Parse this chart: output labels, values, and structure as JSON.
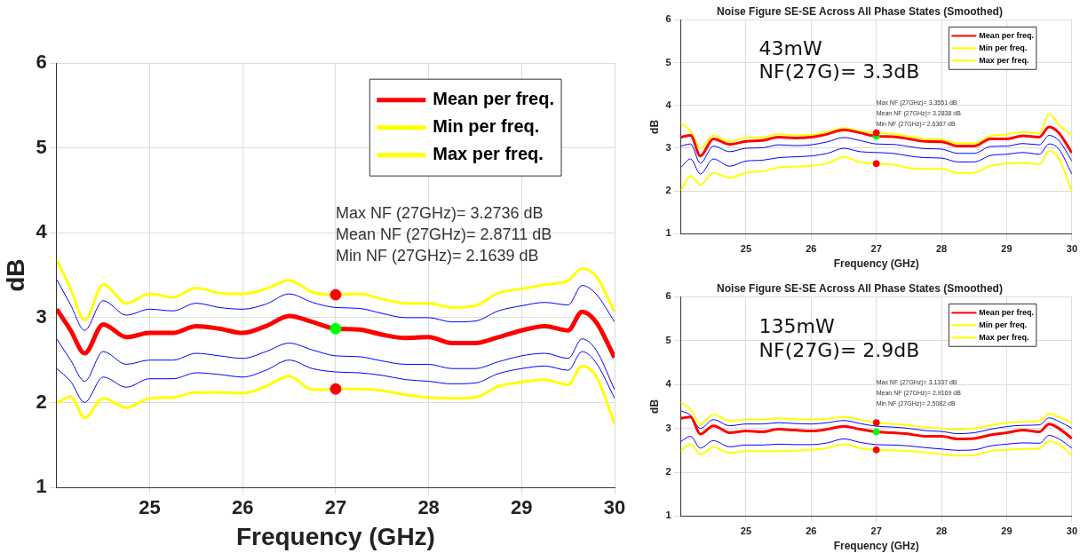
{
  "chart_data": [
    {
      "type": "line",
      "xlabel": "Frequency (GHz)",
      "ylabel": "dB",
      "xlim": [
        24,
        30
      ],
      "xticks": [
        25,
        26,
        27,
        28,
        29,
        30
      ],
      "ylim": [
        1,
        6
      ],
      "yticks": [
        1,
        2,
        3,
        4,
        5,
        6
      ],
      "grid": true,
      "legend": "top right",
      "x": [
        24,
        24.15,
        24.3,
        24.5,
        24.75,
        25,
        25.25,
        25.5,
        25.75,
        26,
        26.25,
        26.5,
        26.75,
        27,
        27.25,
        27.5,
        27.75,
        28,
        28.25,
        28.5,
        28.75,
        29,
        29.25,
        29.5,
        29.65,
        29.8,
        30
      ],
      "annotations": [
        "Max NF (27GHz)= 3.2736 dB",
        "Mean NF (27GHz)= 2.8711 dB",
        "Min NF (27GHz)= 2.1639 dB"
      ],
      "series": [
        {
          "name": "Mean per freq.",
          "color": "#ff0000",
          "values": [
            3.1,
            2.85,
            2.58,
            2.92,
            2.77,
            2.82,
            2.82,
            2.9,
            2.87,
            2.82,
            2.9,
            3.02,
            2.95,
            2.87,
            2.86,
            2.8,
            2.76,
            2.77,
            2.7,
            2.7,
            2.77,
            2.85,
            2.9,
            2.85,
            3.07,
            2.95,
            2.53
          ]
        },
        {
          "name": "Min per freq.",
          "color": "#ffff00",
          "values": [
            1.99,
            2.07,
            1.82,
            2.05,
            1.94,
            2.05,
            2.06,
            2.12,
            2.12,
            2.11,
            2.19,
            2.31,
            2.15,
            2.16,
            2.16,
            2.14,
            2.09,
            2.06,
            2.05,
            2.06,
            2.19,
            2.24,
            2.27,
            2.21,
            2.43,
            2.31,
            1.75
          ]
        },
        {
          "name": "Max per freq.",
          "color": "#ffff00",
          "values": [
            3.68,
            3.34,
            2.97,
            3.39,
            3.17,
            3.28,
            3.24,
            3.35,
            3.29,
            3.28,
            3.34,
            3.44,
            3.3,
            3.27,
            3.28,
            3.22,
            3.17,
            3.17,
            3.12,
            3.14,
            3.29,
            3.34,
            3.39,
            3.44,
            3.58,
            3.49,
            3.07
          ]
        },
        {
          "color": "#0000ff",
          "values": [
            3.45,
            3.15,
            2.85,
            3.2,
            3.03,
            3.1,
            3.08,
            3.17,
            3.12,
            3.1,
            3.16,
            3.28,
            3.18,
            3.12,
            3.11,
            3.05,
            3.0,
            3.0,
            2.95,
            2.96,
            3.08,
            3.14,
            3.18,
            3.15,
            3.38,
            3.28,
            2.95
          ]
        },
        {
          "color": "#0000ff",
          "values": [
            2.75,
            2.5,
            2.25,
            2.6,
            2.45,
            2.5,
            2.5,
            2.58,
            2.55,
            2.52,
            2.6,
            2.7,
            2.62,
            2.55,
            2.54,
            2.49,
            2.45,
            2.45,
            2.4,
            2.4,
            2.48,
            2.55,
            2.58,
            2.52,
            2.75,
            2.62,
            2.15
          ]
        },
        {
          "color": "#0000ff",
          "values": [
            2.4,
            2.25,
            2.0,
            2.3,
            2.18,
            2.28,
            2.28,
            2.35,
            2.33,
            2.3,
            2.38,
            2.5,
            2.4,
            2.36,
            2.35,
            2.32,
            2.27,
            2.25,
            2.22,
            2.23,
            2.34,
            2.4,
            2.43,
            2.38,
            2.6,
            2.47,
            2.05
          ]
        },
        {
          "type": "scatter",
          "marker": "circle",
          "values": [
            null,
            null,
            null,
            null,
            null,
            null,
            null,
            null,
            null,
            null,
            null,
            null,
            null,
            3.27,
            null,
            null,
            null,
            null,
            null,
            null,
            null,
            null,
            null,
            null,
            null,
            null,
            null
          ],
          "color": "#ff0000"
        },
        {
          "type": "scatter",
          "marker": "circle",
          "values": [
            null,
            null,
            null,
            null,
            null,
            null,
            null,
            null,
            null,
            null,
            null,
            null,
            null,
            2.87,
            null,
            null,
            null,
            null,
            null,
            null,
            null,
            null,
            null,
            null,
            null,
            null,
            null
          ],
          "color": "#00ff00"
        },
        {
          "type": "scatter",
          "marker": "circle",
          "values": [
            null,
            null,
            null,
            null,
            null,
            null,
            null,
            null,
            null,
            null,
            null,
            null,
            null,
            2.16,
            null,
            null,
            null,
            null,
            null,
            null,
            null,
            null,
            null,
            null,
            null,
            null,
            null
          ],
          "color": "#ff0000"
        }
      ]
    },
    {
      "type": "line",
      "title": "Noise Figure SE-SE Across All Phase States (Smoothed)",
      "xlabel": "Frequency (GHz)",
      "ylabel": "dB",
      "xlim": [
        24,
        30
      ],
      "xticks": [
        25,
        26,
        27,
        28,
        29,
        30
      ],
      "ylim": [
        1,
        6
      ],
      "yticks": [
        1,
        2,
        3,
        4,
        5,
        6
      ],
      "grid": true,
      "legend": "top right",
      "x": [
        24,
        24.15,
        24.3,
        24.5,
        24.75,
        25,
        25.25,
        25.5,
        25.75,
        26,
        26.25,
        26.5,
        26.75,
        27,
        27.25,
        27.5,
        27.75,
        28,
        28.25,
        28.5,
        28.75,
        29,
        29.25,
        29.5,
        29.65,
        29.8,
        30
      ],
      "annotations": [
        "43mW",
        "NF(27G)= 3.3dB",
        "Max NF (27GHz)= 3.3551 dB",
        "Mean NF (27GHz)= 3.2838 dB",
        "Min NF (27GHz)= 2.6367 dB"
      ],
      "series": [
        {
          "name": "Mean per freq.",
          "color": "#ff0000",
          "values": [
            3.26,
            3.3,
            2.82,
            3.22,
            3.09,
            3.16,
            3.18,
            3.26,
            3.24,
            3.26,
            3.33,
            3.43,
            3.36,
            3.28,
            3.27,
            3.22,
            3.16,
            3.15,
            3.05,
            3.05,
            3.22,
            3.22,
            3.29,
            3.26,
            3.5,
            3.36,
            2.89
          ]
        },
        {
          "name": "Min per freq.",
          "color": "#ffff00",
          "values": [
            2.01,
            2.35,
            2.15,
            2.43,
            2.31,
            2.43,
            2.46,
            2.55,
            2.57,
            2.59,
            2.65,
            2.79,
            2.68,
            2.64,
            2.62,
            2.54,
            2.52,
            2.52,
            2.42,
            2.43,
            2.59,
            2.64,
            2.66,
            2.62,
            2.94,
            2.76,
            1.98
          ]
        },
        {
          "name": "Max per freq.",
          "color": "#ffff00",
          "values": [
            3.59,
            3.4,
            3.0,
            3.3,
            3.15,
            3.25,
            3.25,
            3.33,
            3.3,
            3.31,
            3.38,
            3.47,
            3.4,
            3.36,
            3.33,
            3.28,
            3.22,
            3.2,
            3.12,
            3.12,
            3.28,
            3.32,
            3.38,
            3.35,
            3.8,
            3.55,
            3.3
          ]
        },
        {
          "color": "#0000ff",
          "values": [
            3.05,
            3.1,
            2.65,
            3.05,
            2.92,
            3.0,
            3.01,
            3.08,
            3.06,
            3.08,
            3.15,
            3.25,
            3.18,
            3.1,
            3.09,
            3.04,
            2.99,
            2.98,
            2.88,
            2.88,
            3.04,
            3.05,
            3.11,
            3.08,
            3.3,
            3.18,
            2.7
          ]
        },
        {
          "color": "#0000ff",
          "values": [
            2.55,
            2.75,
            2.4,
            2.75,
            2.58,
            2.7,
            2.72,
            2.78,
            2.8,
            2.82,
            2.88,
            3.0,
            2.92,
            2.9,
            2.88,
            2.82,
            2.78,
            2.77,
            2.68,
            2.68,
            2.83,
            2.86,
            2.9,
            2.86,
            3.1,
            2.98,
            2.4
          ]
        },
        {
          "type": "scatter",
          "marker": "circle",
          "values": [
            null,
            null,
            null,
            null,
            null,
            null,
            null,
            null,
            null,
            null,
            null,
            null,
            null,
            3.36,
            null,
            null,
            null,
            null,
            null,
            null,
            null,
            null,
            null,
            null,
            null,
            null,
            null
          ],
          "color": "#ff0000"
        },
        {
          "type": "scatter",
          "marker": "circle",
          "values": [
            null,
            null,
            null,
            null,
            null,
            null,
            null,
            null,
            null,
            null,
            null,
            null,
            null,
            3.28,
            null,
            null,
            null,
            null,
            null,
            null,
            null,
            null,
            null,
            null,
            null,
            null,
            null
          ],
          "color": "#00ff00"
        },
        {
          "type": "scatter",
          "marker": "circle",
          "values": [
            null,
            null,
            null,
            null,
            null,
            null,
            null,
            null,
            null,
            null,
            null,
            null,
            null,
            2.64,
            null,
            null,
            null,
            null,
            null,
            null,
            null,
            null,
            null,
            null,
            null,
            null,
            null
          ],
          "color": "#ff0000"
        }
      ]
    },
    {
      "type": "line",
      "title": "Noise Figure SE-SE Across All Phase States (Smoothed)",
      "xlabel": "Frequency (GHz)",
      "ylabel": "dB",
      "xlim": [
        24,
        30
      ],
      "xticks": [
        25,
        26,
        27,
        28,
        29,
        30
      ],
      "ylim": [
        1,
        6
      ],
      "yticks": [
        1,
        2,
        3,
        4,
        5,
        6
      ],
      "grid": true,
      "legend": "top right",
      "x": [
        24,
        24.15,
        24.3,
        24.5,
        24.75,
        25,
        25.25,
        25.5,
        25.75,
        26,
        26.25,
        26.5,
        26.75,
        27,
        27.25,
        27.5,
        27.75,
        28,
        28.25,
        28.5,
        28.75,
        29,
        29.25,
        29.5,
        29.65,
        29.8,
        30
      ],
      "annotations": [
        "135mW",
        "NF(27G)= 2.9dB",
        "Max NF (27GHz)= 3.1337 dB",
        "Mean NF (27GHz)= 2.9169 dB",
        "Min NF (27GHz)= 2.5082 dB"
      ],
      "series": [
        {
          "name": "Mean per freq.",
          "color": "#ff0000",
          "values": [
            3.23,
            3.26,
            2.87,
            3.06,
            2.9,
            2.94,
            2.92,
            2.98,
            2.96,
            2.94,
            2.98,
            3.05,
            2.98,
            2.92,
            2.9,
            2.87,
            2.82,
            2.82,
            2.76,
            2.77,
            2.85,
            2.9,
            2.96,
            2.92,
            3.1,
            3.0,
            2.77
          ]
        },
        {
          "name": "Min per freq.",
          "color": "#ffff00",
          "values": [
            2.48,
            2.64,
            2.41,
            2.57,
            2.44,
            2.48,
            2.48,
            2.48,
            2.49,
            2.51,
            2.55,
            2.64,
            2.55,
            2.51,
            2.5,
            2.48,
            2.45,
            2.41,
            2.38,
            2.39,
            2.48,
            2.51,
            2.53,
            2.54,
            2.71,
            2.64,
            2.38
          ]
        },
        {
          "name": "Max per freq.",
          "color": "#ffff00",
          "values": [
            3.59,
            3.43,
            3.1,
            3.31,
            3.17,
            3.2,
            3.2,
            3.23,
            3.21,
            3.2,
            3.22,
            3.26,
            3.2,
            3.13,
            3.1,
            3.07,
            3.03,
            3.0,
            2.97,
            3.0,
            3.07,
            3.13,
            3.15,
            3.17,
            3.33,
            3.26,
            3.13
          ]
        },
        {
          "color": "#0000ff",
          "values": [
            3.4,
            3.3,
            3.0,
            3.2,
            3.06,
            3.1,
            3.1,
            3.13,
            3.11,
            3.1,
            3.13,
            3.18,
            3.11,
            3.05,
            3.03,
            3.0,
            2.95,
            2.93,
            2.88,
            2.9,
            2.98,
            3.04,
            3.07,
            3.08,
            3.24,
            3.16,
            3.0
          ]
        },
        {
          "color": "#0000ff",
          "values": [
            2.7,
            2.82,
            2.55,
            2.72,
            2.58,
            2.62,
            2.62,
            2.64,
            2.63,
            2.63,
            2.67,
            2.76,
            2.68,
            2.63,
            2.62,
            2.6,
            2.56,
            2.53,
            2.5,
            2.51,
            2.6,
            2.64,
            2.67,
            2.66,
            2.84,
            2.76,
            2.55
          ]
        },
        {
          "type": "scatter",
          "marker": "circle",
          "values": [
            null,
            null,
            null,
            null,
            null,
            null,
            null,
            null,
            null,
            null,
            null,
            null,
            null,
            3.13,
            null,
            null,
            null,
            null,
            null,
            null,
            null,
            null,
            null,
            null,
            null,
            null,
            null
          ],
          "color": "#ff0000"
        },
        {
          "type": "scatter",
          "marker": "circle",
          "values": [
            null,
            null,
            null,
            null,
            null,
            null,
            null,
            null,
            null,
            null,
            null,
            null,
            null,
            2.92,
            null,
            null,
            null,
            null,
            null,
            null,
            null,
            null,
            null,
            null,
            null,
            null,
            null
          ],
          "color": "#00ff00"
        },
        {
          "type": "scatter",
          "marker": "circle",
          "values": [
            null,
            null,
            null,
            null,
            null,
            null,
            null,
            null,
            null,
            null,
            null,
            null,
            null,
            2.51,
            null,
            null,
            null,
            null,
            null,
            null,
            null,
            null,
            null,
            null,
            null,
            null,
            null
          ],
          "color": "#ff0000"
        }
      ]
    }
  ]
}
